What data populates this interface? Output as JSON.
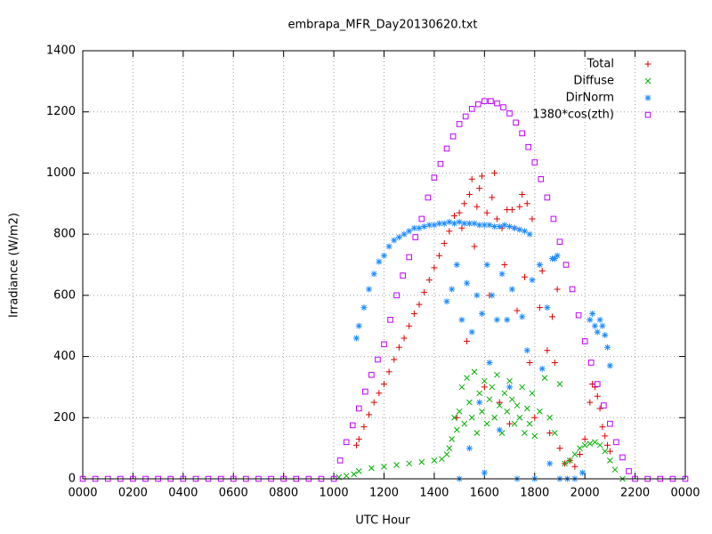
{
  "chart_data": {
    "type": "scatter",
    "title": "embrapa_MFR_Day20130620.txt",
    "x_label": "UTC Hour",
    "y_label": "Irradiance (W/m2)",
    "xlim": [
      0,
      24
    ],
    "xticks": [
      {
        "value": 0,
        "label": "0000"
      },
      {
        "value": 2,
        "label": "0200"
      },
      {
        "value": 4,
        "label": "0400"
      },
      {
        "value": 6,
        "label": "0600"
      },
      {
        "value": 8,
        "label": "0800"
      },
      {
        "value": 10,
        "label": "1000"
      },
      {
        "value": 12,
        "label": "1200"
      },
      {
        "value": 14,
        "label": "1400"
      },
      {
        "value": 16,
        "label": "1600"
      },
      {
        "value": 18,
        "label": "1800"
      },
      {
        "value": 20,
        "label": "2000"
      },
      {
        "value": 22,
        "label": "2200"
      },
      {
        "value": 24,
        "label": "0000"
      }
    ],
    "ylim": [
      0,
      1400
    ],
    "yticks": [
      0,
      200,
      400,
      600,
      800,
      1000,
      1200,
      1400
    ],
    "grid": true,
    "legend": "top-right",
    "series": [
      {
        "name": "Total",
        "color": "#e00000",
        "marker": "plus",
        "x": [
          10.9,
          11.0,
          11.2,
          11.4,
          11.6,
          11.8,
          12.0,
          12.2,
          12.4,
          12.6,
          12.8,
          13.0,
          13.2,
          13.4,
          13.6,
          13.8,
          14.0,
          14.2,
          14.4,
          14.6,
          14.8,
          14.9,
          15.0,
          15.1,
          15.2,
          15.3,
          15.4,
          15.5,
          15.6,
          15.7,
          15.8,
          15.9,
          16.0,
          16.1,
          16.2,
          16.3,
          16.4,
          16.5,
          16.6,
          16.7,
          16.8,
          16.9,
          17.0,
          17.1,
          17.2,
          17.3,
          17.4,
          17.5,
          17.6,
          17.7,
          17.8,
          17.9,
          18.0,
          18.2,
          18.3,
          18.5,
          18.6,
          18.7,
          18.8,
          18.9,
          19.0,
          19.2,
          19.4,
          19.6,
          19.8,
          20.0,
          20.2,
          20.3,
          20.4,
          20.5,
          20.6,
          20.7,
          20.8,
          20.9,
          21.0
        ],
        "values": [
          110,
          130,
          170,
          210,
          250,
          280,
          310,
          350,
          390,
          430,
          460,
          500,
          540,
          570,
          610,
          650,
          690,
          730,
          770,
          810,
          860,
          200,
          870,
          820,
          900,
          450,
          930,
          980,
          760,
          890,
          950,
          990,
          300,
          870,
          600,
          920,
          1000,
          850,
          250,
          820,
          700,
          880,
          180,
          880,
          820,
          550,
          890,
          930,
          660,
          900,
          380,
          850,
          200,
          560,
          680,
          420,
          150,
          530,
          380,
          620,
          100,
          50,
          60,
          40,
          80,
          130,
          250,
          310,
          300,
          270,
          230,
          170,
          140,
          110,
          90
        ]
      },
      {
        "name": "Diffuse",
        "color": "#00b000",
        "marker": "cross",
        "x": [
          10.2,
          10.5,
          10.8,
          11.0,
          11.5,
          12.0,
          12.5,
          13.0,
          13.5,
          14.0,
          14.3,
          14.5,
          14.6,
          14.7,
          14.8,
          14.9,
          15.0,
          15.1,
          15.2,
          15.3,
          15.4,
          15.5,
          15.6,
          15.7,
          15.8,
          15.9,
          16.0,
          16.1,
          16.2,
          16.3,
          16.4,
          16.5,
          16.6,
          16.7,
          16.8,
          16.9,
          17.0,
          17.1,
          17.2,
          17.3,
          17.4,
          17.5,
          17.6,
          17.7,
          17.8,
          17.9,
          18.0,
          18.2,
          18.4,
          18.6,
          18.8,
          19.0,
          19.2,
          19.4,
          19.6,
          19.8,
          20.0,
          20.2,
          20.4,
          20.6,
          20.8,
          21.0,
          21.2,
          21.5
        ],
        "values": [
          5,
          10,
          15,
          25,
          35,
          40,
          45,
          50,
          55,
          60,
          65,
          80,
          100,
          130,
          200,
          160,
          220,
          300,
          180,
          330,
          250,
          200,
          350,
          150,
          280,
          220,
          320,
          180,
          260,
          300,
          200,
          340,
          240,
          150,
          280,
          220,
          320,
          260,
          180,
          240,
          200,
          300,
          150,
          230,
          180,
          280,
          140,
          220,
          330,
          200,
          150,
          310,
          50,
          60,
          80,
          100,
          110,
          115,
          120,
          110,
          90,
          60,
          30,
          0
        ]
      },
      {
        "name": "DirNorm",
        "color": "#1e8cff",
        "marker": "star",
        "x": [
          10.9,
          11.0,
          11.2,
          11.4,
          11.6,
          11.8,
          12.0,
          12.2,
          12.4,
          12.6,
          12.8,
          13.0,
          13.2,
          13.4,
          13.6,
          13.8,
          14.0,
          14.2,
          14.4,
          14.6,
          14.8,
          15.0,
          15.2,
          15.4,
          15.6,
          15.8,
          16.0,
          16.2,
          16.4,
          16.6,
          16.8,
          17.0,
          17.2,
          17.4,
          17.6,
          17.8,
          14.5,
          14.7,
          14.9,
          15.0,
          15.1,
          15.3,
          15.4,
          15.5,
          15.7,
          15.8,
          15.9,
          16.0,
          16.1,
          16.2,
          16.3,
          16.5,
          16.6,
          16.7,
          16.9,
          17.0,
          17.1,
          17.3,
          17.5,
          17.7,
          17.9,
          18.0,
          18.2,
          18.3,
          18.5,
          18.6,
          18.7,
          18.8,
          18.9,
          19.0,
          19.3,
          19.6,
          19.9,
          20.2,
          20.3,
          20.4,
          20.5,
          20.6,
          20.7,
          20.8,
          20.9,
          21.0
        ],
        "values": [
          460,
          500,
          560,
          620,
          670,
          710,
          730,
          760,
          780,
          790,
          800,
          810,
          820,
          820,
          825,
          830,
          830,
          835,
          835,
          840,
          835,
          840,
          835,
          835,
          835,
          830,
          830,
          830,
          825,
          825,
          830,
          825,
          820,
          815,
          810,
          800,
          580,
          620,
          700,
          0,
          520,
          640,
          100,
          480,
          600,
          250,
          540,
          20,
          700,
          380,
          600,
          520,
          160,
          670,
          520,
          300,
          620,
          0,
          530,
          420,
          650,
          0,
          700,
          360,
          560,
          50,
          720,
          720,
          730,
          0,
          0,
          0,
          20,
          520,
          540,
          500,
          480,
          520,
          500,
          470,
          430,
          370
        ]
      },
      {
        "name": "1380*cos(zth)",
        "color": "#c000ff",
        "marker": "square",
        "x": [
          0,
          0.5,
          1,
          1.5,
          2,
          2.5,
          3,
          3.5,
          4,
          4.5,
          5,
          5.5,
          6,
          6.5,
          7,
          7.5,
          8,
          8.5,
          9,
          9.5,
          10,
          10.25,
          10.5,
          10.75,
          11,
          11.25,
          11.5,
          11.75,
          12,
          12.25,
          12.5,
          12.75,
          13,
          13.25,
          13.5,
          13.75,
          14,
          14.25,
          14.5,
          14.75,
          15,
          15.25,
          15.5,
          15.75,
          16,
          16.25,
          16.5,
          16.75,
          17,
          17.25,
          17.5,
          17.75,
          18,
          18.25,
          18.5,
          18.75,
          19,
          19.25,
          19.5,
          19.75,
          20,
          20.25,
          20.5,
          20.75,
          21,
          21.25,
          21.5,
          21.75,
          22,
          22.5,
          23,
          23.5,
          24
        ],
        "values": [
          0,
          0,
          0,
          0,
          0,
          0,
          0,
          0,
          0,
          0,
          0,
          0,
          0,
          0,
          0,
          0,
          0,
          0,
          0,
          0,
          0,
          60,
          120,
          175,
          230,
          285,
          340,
          390,
          440,
          520,
          600,
          665,
          725,
          790,
          850,
          920,
          985,
          1030,
          1080,
          1120,
          1160,
          1185,
          1210,
          1225,
          1235,
          1235,
          1228,
          1215,
          1195,
          1165,
          1130,
          1085,
          1035,
          980,
          920,
          850,
          775,
          700,
          620,
          535,
          450,
          380,
          310,
          240,
          180,
          120,
          70,
          25,
          0,
          0,
          0,
          0,
          0
        ]
      }
    ]
  }
}
